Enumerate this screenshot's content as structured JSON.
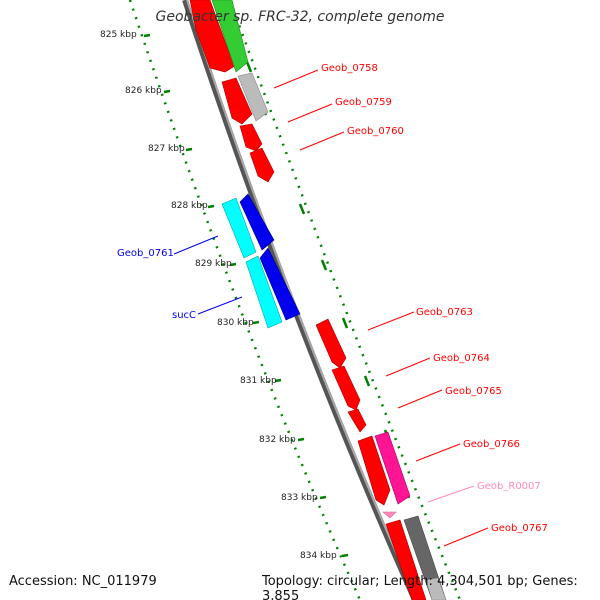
{
  "title": "Geobacter sp. FRC-32, complete genome",
  "footer": {
    "accession": "Accession: NC_011979",
    "summary": "Topology: circular; Length: 4,304,501 bp; Genes: 3,855"
  },
  "ticks": [
    "825 kbp",
    "826 kbp",
    "827 kbp",
    "828 kbp",
    "829 kbp",
    "830 kbp",
    "831 kbp",
    "832 kbp",
    "833 kbp",
    "834 kbp"
  ],
  "labels": {
    "geob_0758": "Geob_0758",
    "geob_0759": "Geob_0759",
    "geob_0760": "Geob_0760",
    "geob_0761": "Geob_0761",
    "succ": "sucC",
    "geob_0763": "Geob_0763",
    "geob_0764": "Geob_0764",
    "geob_0765": "Geob_0765",
    "geob_0766": "Geob_0766",
    "geob_r0007": "Geob_R0007",
    "geob_0767": "Geob_0767"
  },
  "colors": {
    "forward_cds": "#ff0000",
    "reverse_cds": "#0000ee",
    "trna": "#ff1493",
    "rrna_label": "#ff88bb",
    "cyan_feature": "#00ffff",
    "green_feature": "#33cc33",
    "gray_feature": "#bbbbbb",
    "dark_gray_feature": "#666666",
    "backbone": "#808080",
    "tick_marks": "#008000"
  }
}
